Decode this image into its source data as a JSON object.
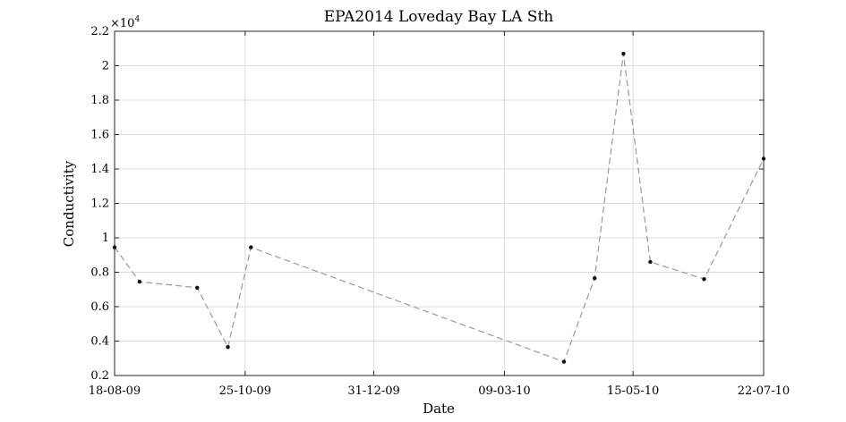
{
  "chart_data": {
    "type": "line",
    "title": "EPA2014 Loveday Bay LA Sth",
    "xlabel": "Date",
    "ylabel": "Conductivity",
    "y_exponent_label": "×10",
    "y_exponent_power": "4",
    "x_ticks": [
      "18-08-09",
      "25-10-09",
      "31-12-09",
      "09-03-10",
      "15-05-10",
      "22-07-10"
    ],
    "y_ticks": [
      "0.2",
      "0.4",
      "0.6",
      "0.8",
      "1",
      "1.2",
      "1.4",
      "1.6",
      "1.8",
      "2",
      "2.2"
    ],
    "xlim": [
      "2009-08-18",
      "2010-07-22"
    ],
    "ylim": [
      2000,
      22000
    ],
    "grid": true,
    "series": [
      {
        "color": "#999999",
        "marker_color": "#111111",
        "line_style": "dashed",
        "x": [
          "2009-08-18",
          "2009-08-31",
          "2009-09-30",
          "2009-10-16",
          "2009-10-28",
          "2010-04-09",
          "2010-04-25",
          "2010-05-10",
          "2010-05-24",
          "2010-06-21",
          "2010-07-22"
        ],
        "y": [
          9450,
          7450,
          7100,
          3650,
          9450,
          2800,
          7650,
          20700,
          8600,
          7600,
          14600
        ]
      }
    ]
  }
}
